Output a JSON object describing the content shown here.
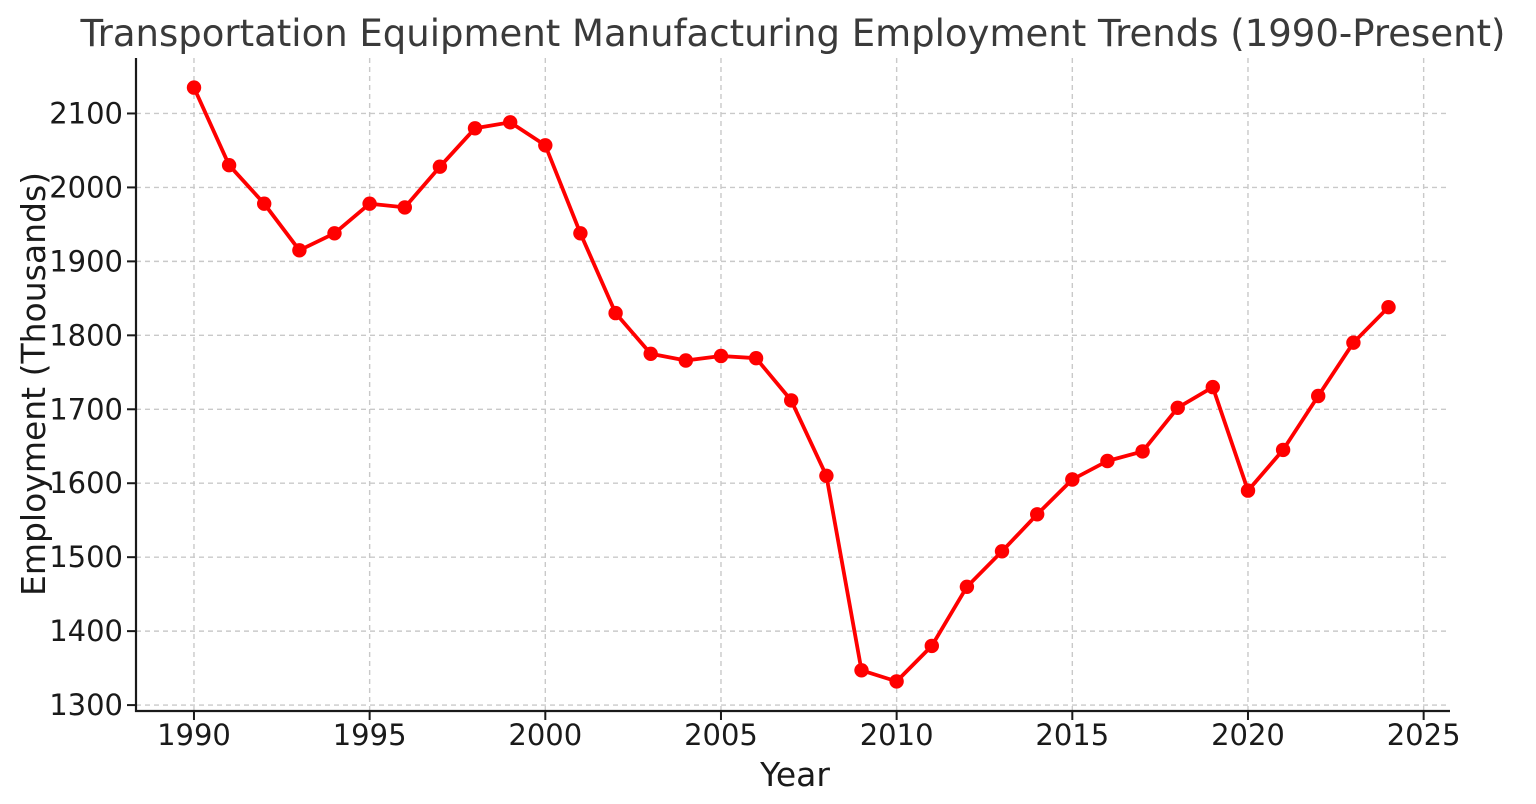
{
  "chart_data": {
    "type": "line",
    "title": "Transportation Equipment Manufacturing Employment Trends (1990-Present)",
    "xlabel": "Year",
    "ylabel": "Employment (Thousands)",
    "grid": true,
    "grid_style": "dashed",
    "legend": "none",
    "x_ticks": [
      1990,
      1995,
      2000,
      2005,
      2010,
      2015,
      2020,
      2025
    ],
    "y_ticks": [
      1300,
      1400,
      1500,
      1600,
      1700,
      1800,
      1900,
      2000,
      2100
    ],
    "xlim": [
      1988.35,
      2025.75
    ],
    "ylim": [
      1292,
      2175
    ],
    "line_color": "#ff0000",
    "marker": "circle",
    "series": [
      {
        "name": "Employment (Thousands)",
        "x": [
          1990,
          1991,
          1992,
          1993,
          1994,
          1995,
          1996,
          1997,
          1998,
          1999,
          2000,
          2001,
          2002,
          2003,
          2004,
          2005,
          2006,
          2007,
          2008,
          2009,
          2010,
          2011,
          2012,
          2013,
          2014,
          2015,
          2016,
          2017,
          2018,
          2019,
          2020,
          2021,
          2022,
          2023,
          2024
        ],
        "values": [
          2135,
          2030,
          1978,
          1915,
          1938,
          1978,
          1973,
          2028,
          2080,
          2088,
          2057,
          1938,
          1830,
          1775,
          1766,
          1772,
          1769,
          1712,
          1610,
          1347,
          1332,
          1380,
          1460,
          1508,
          1558,
          1605,
          1630,
          1643,
          1702,
          1730,
          1590,
          1645,
          1718,
          1790,
          1838
        ]
      }
    ]
  }
}
